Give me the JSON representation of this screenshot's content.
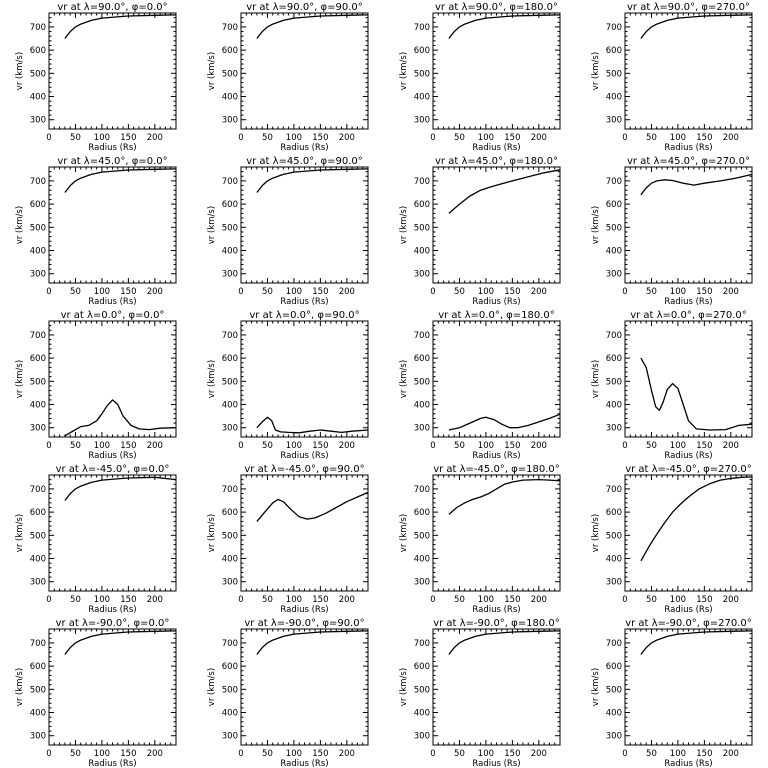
{
  "x_axis_label": "Radius (Rs)",
  "y_axis_label": "vr (km/s)",
  "colors": {
    "background": "#ffffff",
    "line": "#000000"
  },
  "chart_data": [
    {
      "type": "line",
      "title": "vr at λ=90.0°, φ=0.0°",
      "x": [
        30,
        40,
        50,
        60,
        80,
        100,
        150,
        200,
        240
      ],
      "y": [
        650,
        680,
        700,
        712,
        728,
        738,
        747,
        750,
        752
      ],
      "xlabel": "Radius (Rs)",
      "ylabel": "vr (km/s)",
      "xlim": [
        0,
        240
      ],
      "ylim": [
        260,
        760
      ],
      "xticks": [
        0,
        50,
        100,
        150,
        200
      ],
      "yticks": [
        300,
        400,
        500,
        600,
        700
      ]
    },
    {
      "type": "line",
      "title": "vr at λ=90.0°, φ=90.0°",
      "x": [
        30,
        40,
        50,
        60,
        80,
        100,
        150,
        200,
        240
      ],
      "y": [
        650,
        680,
        700,
        712,
        728,
        738,
        747,
        750,
        752
      ],
      "xlabel": "Radius (Rs)",
      "ylabel": "vr (km/s)",
      "xlim": [
        0,
        240
      ],
      "ylim": [
        260,
        760
      ],
      "xticks": [
        0,
        50,
        100,
        150,
        200
      ],
      "yticks": [
        300,
        400,
        500,
        600,
        700
      ]
    },
    {
      "type": "line",
      "title": "vr at λ=90.0°, φ=180.0°",
      "x": [
        30,
        40,
        50,
        60,
        80,
        100,
        150,
        200,
        240
      ],
      "y": [
        650,
        680,
        700,
        712,
        728,
        738,
        747,
        750,
        752
      ],
      "xlabel": "Radius (Rs)",
      "ylabel": "vr (km/s)",
      "xlim": [
        0,
        240
      ],
      "ylim": [
        260,
        760
      ],
      "xticks": [
        0,
        50,
        100,
        150,
        200
      ],
      "yticks": [
        300,
        400,
        500,
        600,
        700
      ]
    },
    {
      "type": "line",
      "title": "vr at λ=90.0°, φ=270.0°",
      "x": [
        30,
        40,
        50,
        60,
        80,
        100,
        150,
        200,
        240
      ],
      "y": [
        650,
        680,
        700,
        712,
        728,
        738,
        747,
        750,
        752
      ],
      "xlabel": "Radius (Rs)",
      "ylabel": "vr (km/s)",
      "xlim": [
        0,
        240
      ],
      "ylim": [
        260,
        760
      ],
      "xticks": [
        0,
        50,
        100,
        150,
        200
      ],
      "yticks": [
        300,
        400,
        500,
        600,
        700
      ]
    },
    {
      "type": "line",
      "title": "vr at λ=45.0°, φ=0.0°",
      "x": [
        30,
        40,
        50,
        60,
        80,
        100,
        150,
        200,
        240
      ],
      "y": [
        650,
        680,
        700,
        712,
        728,
        738,
        747,
        750,
        752
      ],
      "xlabel": "Radius (Rs)",
      "ylabel": "vr (km/s)",
      "xlim": [
        0,
        240
      ],
      "ylim": [
        260,
        760
      ],
      "xticks": [
        0,
        50,
        100,
        150,
        200
      ],
      "yticks": [
        300,
        400,
        500,
        600,
        700
      ]
    },
    {
      "type": "line",
      "title": "vr at λ=45.0°, φ=90.0°",
      "x": [
        30,
        40,
        50,
        60,
        80,
        100,
        150,
        200,
        240
      ],
      "y": [
        650,
        680,
        700,
        712,
        728,
        738,
        747,
        750,
        752
      ],
      "xlabel": "Radius (Rs)",
      "ylabel": "vr (km/s)",
      "xlim": [
        0,
        240
      ],
      "ylim": [
        260,
        760
      ],
      "xticks": [
        0,
        50,
        100,
        150,
        200
      ],
      "yticks": [
        300,
        400,
        500,
        600,
        700
      ]
    },
    {
      "type": "line",
      "title": "vr at λ=45.0°, φ=180.0°",
      "x": [
        30,
        50,
        70,
        90,
        110,
        130,
        150,
        180,
        210,
        240
      ],
      "y": [
        560,
        600,
        635,
        660,
        675,
        688,
        700,
        718,
        735,
        748
      ],
      "xlabel": "Radius (Rs)",
      "ylabel": "vr (km/s)",
      "xlim": [
        0,
        240
      ],
      "ylim": [
        260,
        760
      ],
      "xticks": [
        0,
        50,
        100,
        150,
        200
      ],
      "yticks": [
        300,
        400,
        500,
        600,
        700
      ]
    },
    {
      "type": "line",
      "title": "vr at λ=45.0°, φ=270.0°",
      "x": [
        30,
        40,
        50,
        60,
        75,
        90,
        110,
        130,
        150,
        180,
        210,
        240
      ],
      "y": [
        640,
        670,
        690,
        700,
        705,
        702,
        690,
        682,
        690,
        700,
        712,
        728
      ],
      "xlabel": "Radius (Rs)",
      "ylabel": "vr (km/s)",
      "xlim": [
        0,
        240
      ],
      "ylim": [
        260,
        760
      ],
      "xticks": [
        0,
        50,
        100,
        150,
        200
      ],
      "yticks": [
        300,
        400,
        500,
        600,
        700
      ]
    },
    {
      "type": "line",
      "title": "vr at λ=0.0°, φ=0.0°",
      "x": [
        30,
        45,
        60,
        75,
        90,
        100,
        110,
        120,
        130,
        140,
        155,
        170,
        190,
        210,
        240
      ],
      "y": [
        265,
        285,
        305,
        310,
        330,
        360,
        395,
        420,
        400,
        350,
        310,
        295,
        292,
        298,
        300
      ],
      "xlabel": "Radius (Rs)",
      "ylabel": "vr (km/s)",
      "xlim": [
        0,
        240
      ],
      "ylim": [
        260,
        760
      ],
      "xticks": [
        0,
        50,
        100,
        150,
        200
      ],
      "yticks": [
        300,
        400,
        500,
        600,
        700
      ]
    },
    {
      "type": "line",
      "title": "vr at λ=0.0°, φ=90.0°",
      "x": [
        30,
        40,
        50,
        58,
        65,
        75,
        90,
        110,
        130,
        150,
        170,
        190,
        210,
        240
      ],
      "y": [
        300,
        325,
        345,
        330,
        290,
        282,
        280,
        278,
        285,
        290,
        285,
        280,
        285,
        290
      ],
      "xlabel": "Radius (Rs)",
      "ylabel": "vr (km/s)",
      "xlim": [
        0,
        240
      ],
      "ylim": [
        260,
        760
      ],
      "xticks": [
        0,
        50,
        100,
        150,
        200
      ],
      "yticks": [
        300,
        400,
        500,
        600,
        700
      ]
    },
    {
      "type": "line",
      "title": "vr at λ=0.0°, φ=180.0°",
      "x": [
        30,
        50,
        70,
        90,
        100,
        115,
        130,
        145,
        160,
        180,
        200,
        220,
        240
      ],
      "y": [
        290,
        300,
        320,
        340,
        345,
        335,
        315,
        300,
        300,
        310,
        325,
        340,
        358
      ],
      "xlabel": "Radius (Rs)",
      "ylabel": "vr (km/s)",
      "xlim": [
        0,
        240
      ],
      "ylim": [
        260,
        760
      ],
      "xticks": [
        0,
        50,
        100,
        150,
        200
      ],
      "yticks": [
        300,
        400,
        500,
        600,
        700
      ]
    },
    {
      "type": "line",
      "title": "vr at λ=0.0°, φ=270.0°",
      "x": [
        30,
        40,
        50,
        58,
        65,
        72,
        80,
        90,
        100,
        110,
        120,
        135,
        160,
        190,
        215,
        240
      ],
      "y": [
        600,
        560,
        460,
        390,
        375,
        410,
        465,
        490,
        470,
        400,
        330,
        295,
        290,
        292,
        310,
        315
      ],
      "xlabel": "Radius (Rs)",
      "ylabel": "vr (km/s)",
      "xlim": [
        0,
        240
      ],
      "ylim": [
        260,
        760
      ],
      "xticks": [
        0,
        50,
        100,
        150,
        200
      ],
      "yticks": [
        300,
        400,
        500,
        600,
        700
      ]
    },
    {
      "type": "line",
      "title": "vr at λ=-45.0°, φ=0.0°",
      "x": [
        30,
        40,
        50,
        60,
        80,
        100,
        150,
        200,
        240
      ],
      "y": [
        650,
        680,
        700,
        712,
        728,
        738,
        747,
        750,
        740
      ],
      "xlabel": "Radius (Rs)",
      "ylabel": "vr (km/s)",
      "xlim": [
        0,
        240
      ],
      "ylim": [
        260,
        760
      ],
      "xticks": [
        0,
        50,
        100,
        150,
        200
      ],
      "yticks": [
        300,
        400,
        500,
        600,
        700
      ]
    },
    {
      "type": "line",
      "title": "vr at λ=-45.0°, φ=90.0°",
      "x": [
        30,
        45,
        60,
        70,
        80,
        95,
        110,
        125,
        140,
        160,
        180,
        200,
        220,
        240
      ],
      "y": [
        560,
        600,
        640,
        655,
        645,
        610,
        580,
        570,
        575,
        595,
        620,
        645,
        665,
        685
      ],
      "xlabel": "Radius (Rs)",
      "ylabel": "vr (km/s)",
      "xlim": [
        0,
        240
      ],
      "ylim": [
        260,
        760
      ],
      "xticks": [
        0,
        50,
        100,
        150,
        200
      ],
      "yticks": [
        300,
        400,
        500,
        600,
        700
      ]
    },
    {
      "type": "line",
      "title": "vr at λ=-45.0°, φ=180.0°",
      "x": [
        30,
        45,
        60,
        75,
        90,
        105,
        120,
        135,
        150,
        170,
        200,
        220,
        240
      ],
      "y": [
        590,
        620,
        640,
        655,
        665,
        680,
        700,
        720,
        730,
        738,
        740,
        738,
        735
      ],
      "xlabel": "Radius (Rs)",
      "ylabel": "vr (km/s)",
      "xlim": [
        0,
        240
      ],
      "ylim": [
        260,
        760
      ],
      "xticks": [
        0,
        50,
        100,
        150,
        200
      ],
      "yticks": [
        300,
        400,
        500,
        600,
        700
      ]
    },
    {
      "type": "line",
      "title": "vr at λ=-45.0°, φ=270.0°",
      "x": [
        30,
        45,
        60,
        75,
        90,
        105,
        120,
        140,
        160,
        180,
        200,
        220,
        240
      ],
      "y": [
        390,
        450,
        505,
        555,
        600,
        635,
        665,
        700,
        722,
        738,
        745,
        750,
        752
      ],
      "xlabel": "Radius (Rs)",
      "ylabel": "vr (km/s)",
      "xlim": [
        0,
        240
      ],
      "ylim": [
        260,
        760
      ],
      "xticks": [
        0,
        50,
        100,
        150,
        200
      ],
      "yticks": [
        300,
        400,
        500,
        600,
        700
      ]
    },
    {
      "type": "line",
      "title": "vr at λ=-90.0°, φ=0.0°",
      "x": [
        30,
        40,
        50,
        60,
        80,
        100,
        150,
        200,
        240
      ],
      "y": [
        650,
        680,
        700,
        712,
        728,
        738,
        747,
        750,
        752
      ],
      "xlabel": "Radius (Rs)",
      "ylabel": "vr (km/s)",
      "xlim": [
        0,
        240
      ],
      "ylim": [
        260,
        760
      ],
      "xticks": [
        0,
        50,
        100,
        150,
        200
      ],
      "yticks": [
        300,
        400,
        500,
        600,
        700
      ]
    },
    {
      "type": "line",
      "title": "vr at λ=-90.0°, φ=90.0°",
      "x": [
        30,
        40,
        50,
        60,
        80,
        100,
        150,
        200,
        240
      ],
      "y": [
        650,
        680,
        700,
        712,
        728,
        738,
        747,
        750,
        752
      ],
      "xlabel": "Radius (Rs)",
      "ylabel": "vr (km/s)",
      "xlim": [
        0,
        240
      ],
      "ylim": [
        260,
        760
      ],
      "xticks": [
        0,
        50,
        100,
        150,
        200
      ],
      "yticks": [
        300,
        400,
        500,
        600,
        700
      ]
    },
    {
      "type": "line",
      "title": "vr at λ=-90.0°, φ=180.0°",
      "x": [
        30,
        40,
        50,
        60,
        80,
        100,
        150,
        200,
        240
      ],
      "y": [
        650,
        680,
        700,
        712,
        728,
        738,
        747,
        750,
        752
      ],
      "xlabel": "Radius (Rs)",
      "ylabel": "vr (km/s)",
      "xlim": [
        0,
        240
      ],
      "ylim": [
        260,
        760
      ],
      "xticks": [
        0,
        50,
        100,
        150,
        200
      ],
      "yticks": [
        300,
        400,
        500,
        600,
        700
      ]
    },
    {
      "type": "line",
      "title": "vr at λ=-90.0°, φ=270.0°",
      "x": [
        30,
        40,
        50,
        60,
        80,
        100,
        150,
        200,
        240
      ],
      "y": [
        650,
        680,
        700,
        712,
        728,
        738,
        747,
        750,
        752
      ],
      "xlabel": "Radius (Rs)",
      "ylabel": "vr (km/s)",
      "xlim": [
        0,
        240
      ],
      "ylim": [
        260,
        760
      ],
      "xticks": [
        0,
        50,
        100,
        150,
        200
      ],
      "yticks": [
        300,
        400,
        500,
        600,
        700
      ]
    }
  ]
}
